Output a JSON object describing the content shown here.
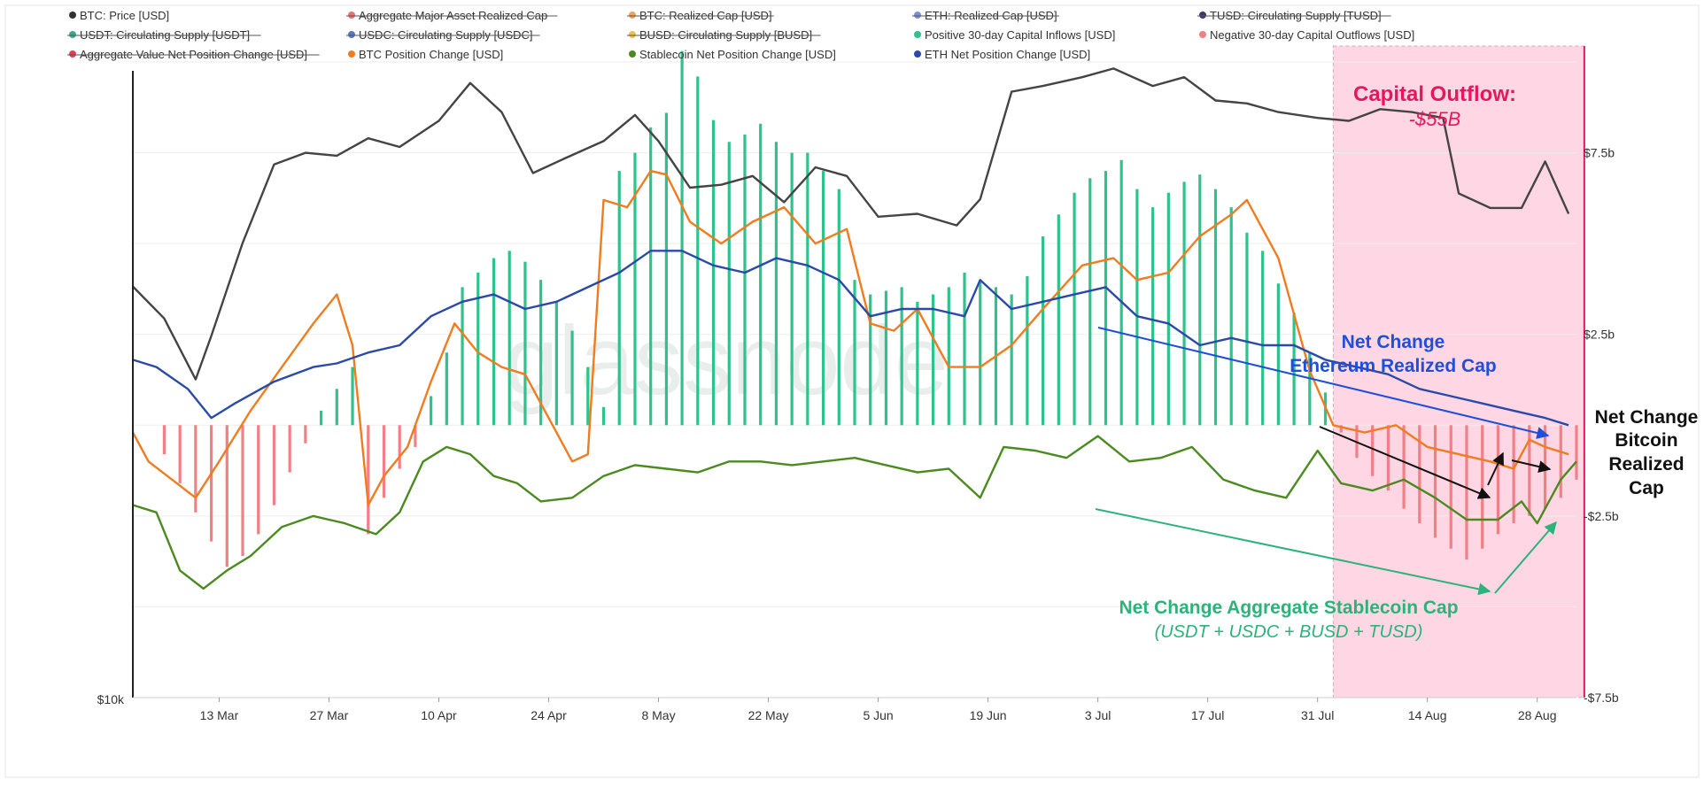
{
  "chart_data": {
    "type": "line",
    "title": "",
    "xlabel": "",
    "ylabel": "",
    "watermark": "glassnode",
    "legend": [
      {
        "label": "BTC: Price [USD]",
        "color": "#333333",
        "struck": false
      },
      {
        "label": "Aggregate Major Asset Realized Cap",
        "color": "#e57373",
        "struck": true
      },
      {
        "label": "BTC: Realized Cap [USD]",
        "color": "#f0a35e",
        "struck": true
      },
      {
        "label": "ETH: Realized Cap [USD]",
        "color": "#7f8fd6",
        "struck": true
      },
      {
        "label": "TUSD: Circulating Supply [TUSD]",
        "color": "#3a3a6e",
        "struck": true
      },
      {
        "label": "USDT: Circulating Supply [USDT]",
        "color": "#3ea98a",
        "struck": true
      },
      {
        "label": "USDC: Circulating Supply [USDC]",
        "color": "#5a78c0",
        "struck": true
      },
      {
        "label": "BUSD: Circulating Supply [BUSD]",
        "color": "#e8c24a",
        "struck": true
      },
      {
        "label": "Positive 30-day Capital Inflows [USD]",
        "color": "#2ec28c",
        "struck": false
      },
      {
        "label": "Negative 30-day Capital Outflows [USD]",
        "color": "#f07f86",
        "struck": false
      },
      {
        "label": "Aggregate Value Net Position Change [USD]",
        "color": "#e04050",
        "struck": true
      },
      {
        "label": "BTC Position Change [USD]",
        "color": "#f07c20",
        "struck": false
      },
      {
        "label": "Stablecoin Net Position Change [USD]",
        "color": "#4a8a1f",
        "struck": false
      },
      {
        "label": "ETH Net Position Change [USD]",
        "color": "#2a4aa8",
        "struck": false
      }
    ],
    "x_ticks": [
      "13 Mar",
      "27 Mar",
      "10 Apr",
      "24 Apr",
      "8 May",
      "22 May",
      "5 Jun",
      "19 Jun",
      "3 Jul",
      "17 Jul",
      "31 Jul",
      "14 Aug",
      "28 Aug"
    ],
    "x_range": [
      "2023-03-02",
      "2023-09-02"
    ],
    "right_axis": {
      "ticks": [
        "$7.5b",
        "$2.5b",
        "-$2.5b",
        "-$7.5b"
      ],
      "values": [
        7.5,
        2.5,
        -2.5,
        -7.5
      ],
      "range": [
        -7.5,
        10
      ]
    },
    "left_axis": {
      "ticks": [
        "$10k"
      ]
    },
    "highlight": {
      "start": "2023-08-02",
      "end": "2023-09-03",
      "color": "#ffd6e4",
      "title": "Capital Outflow:",
      "value": "-$55B"
    },
    "annotations": {
      "eth": {
        "line1": "Net Change",
        "line2": "Ethereum Realized Cap",
        "color": "#1f4fd8"
      },
      "btc": {
        "line1": "Net Change",
        "line2": "Bitcoin",
        "line3": "Realized",
        "line4": "Cap",
        "color": "#111111"
      },
      "stable": {
        "line1": "Net Change Aggregate Stablecoin Cap",
        "line2": "(USDT + USDC + BUSD + TUSD)",
        "color": "#2bb37a"
      }
    },
    "bars_dates": [
      "2023-03-02",
      "2023-03-06",
      "2023-03-08",
      "2023-03-10",
      "2023-03-12",
      "2023-03-14",
      "2023-03-16",
      "2023-03-18",
      "2023-03-20",
      "2023-03-22",
      "2023-03-24",
      "2023-03-26",
      "2023-03-28",
      "2023-03-30",
      "2023-04-01",
      "2023-04-03",
      "2023-04-05",
      "2023-04-07",
      "2023-04-09",
      "2023-04-11",
      "2023-04-13",
      "2023-04-15",
      "2023-04-17",
      "2023-04-19",
      "2023-04-21",
      "2023-04-23",
      "2023-04-25",
      "2023-04-27",
      "2023-04-29",
      "2023-05-01",
      "2023-05-03",
      "2023-05-05",
      "2023-05-07",
      "2023-05-09",
      "2023-05-11",
      "2023-05-13",
      "2023-05-15",
      "2023-05-17",
      "2023-05-19",
      "2023-05-21",
      "2023-05-23",
      "2023-05-25",
      "2023-05-27",
      "2023-05-29",
      "2023-05-31",
      "2023-06-02",
      "2023-06-04",
      "2023-06-06",
      "2023-06-08",
      "2023-06-10",
      "2023-06-12",
      "2023-06-14",
      "2023-06-16",
      "2023-06-18",
      "2023-06-20",
      "2023-06-22",
      "2023-06-24",
      "2023-06-26",
      "2023-06-28",
      "2023-06-30",
      "2023-07-02",
      "2023-07-04",
      "2023-07-06",
      "2023-07-08",
      "2023-07-10",
      "2023-07-12",
      "2023-07-14",
      "2023-07-16",
      "2023-07-18",
      "2023-07-20",
      "2023-07-22",
      "2023-07-24",
      "2023-07-26",
      "2023-07-28",
      "2023-07-30",
      "2023-08-01",
      "2023-08-03",
      "2023-08-05",
      "2023-08-07",
      "2023-08-09",
      "2023-08-11",
      "2023-08-13",
      "2023-08-15",
      "2023-08-17",
      "2023-08-19",
      "2023-08-21",
      "2023-08-23",
      "2023-08-25",
      "2023-08-27",
      "2023-08-29",
      "2023-08-31",
      "2023-09-02"
    ],
    "bars_values": [
      0.0,
      -0.8,
      -1.6,
      -2.4,
      -3.2,
      -3.9,
      -3.6,
      -3.0,
      -2.2,
      -1.3,
      -0.5,
      0.4,
      1.0,
      1.6,
      -3.0,
      -2.0,
      -1.2,
      -0.6,
      0.8,
      2.0,
      3.8,
      4.2,
      4.6,
      4.8,
      4.5,
      4.0,
      3.4,
      2.6,
      1.6,
      0.5,
      7.0,
      7.5,
      8.2,
      8.6,
      10.3,
      9.6,
      8.4,
      7.8,
      8.0,
      8.3,
      7.8,
      7.5,
      7.5,
      7.0,
      6.5,
      4.0,
      3.6,
      3.7,
      3.8,
      3.4,
      3.6,
      3.8,
      4.2,
      4.0,
      3.8,
      3.6,
      4.1,
      5.2,
      5.8,
      6.4,
      6.8,
      7.0,
      7.3,
      6.5,
      6.0,
      6.4,
      6.7,
      6.9,
      6.5,
      6.0,
      5.3,
      4.8,
      3.9,
      3.1,
      2.0,
      0.9,
      -0.2,
      -0.9,
      -1.4,
      -1.8,
      -2.3,
      -2.7,
      -3.1,
      -3.4,
      -3.7,
      -3.4,
      -3.0,
      -2.7,
      -2.5,
      -2.3,
      -2.0,
      -1.5
    ],
    "series": [
      {
        "name": "BTC: Price [USD]",
        "color": "#444444",
        "axis": "left",
        "x": [
          "2023-03-02",
          "2023-03-06",
          "2023-03-10",
          "2023-03-12",
          "2023-03-16",
          "2023-03-20",
          "2023-03-24",
          "2023-03-28",
          "2023-04-01",
          "2023-04-05",
          "2023-04-10",
          "2023-04-14",
          "2023-04-18",
          "2023-04-22",
          "2023-04-26",
          "2023-05-01",
          "2023-05-05",
          "2023-05-08",
          "2023-05-12",
          "2023-05-16",
          "2023-05-20",
          "2023-05-24",
          "2023-05-28",
          "2023-06-01",
          "2023-06-05",
          "2023-06-10",
          "2023-06-15",
          "2023-06-18",
          "2023-06-22",
          "2023-06-26",
          "2023-07-01",
          "2023-07-05",
          "2023-07-10",
          "2023-07-14",
          "2023-07-18",
          "2023-07-22",
          "2023-07-26",
          "2023-07-31",
          "2023-08-04",
          "2023-08-08",
          "2023-08-12",
          "2023-08-16",
          "2023-08-18",
          "2023-08-22",
          "2023-08-26",
          "2023-08-29",
          "2023-09-01"
        ],
        "y": [
          23400,
          22300,
          20200,
          21700,
          24900,
          27600,
          28000,
          27900,
          28500,
          28200,
          29100,
          30400,
          29400,
          27300,
          27800,
          28400,
          29300,
          28400,
          26800,
          26900,
          27200,
          26300,
          27500,
          27200,
          25800,
          25900,
          25500,
          26400,
          30100,
          30300,
          30600,
          30900,
          30300,
          30600,
          29800,
          29700,
          29400,
          29200,
          29100,
          29500,
          29400,
          29200,
          26600,
          26100,
          26100,
          27700,
          25900
        ]
      },
      {
        "name": "BTC Position Change [USD]",
        "color": "#f07c20",
        "axis": "right",
        "x": [
          "2023-03-02",
          "2023-03-04",
          "2023-03-07",
          "2023-03-10",
          "2023-03-13",
          "2023-03-17",
          "2023-03-21",
          "2023-03-25",
          "2023-03-28",
          "2023-03-30",
          "2023-04-01",
          "2023-04-03",
          "2023-04-06",
          "2023-04-09",
          "2023-04-12",
          "2023-04-15",
          "2023-04-18",
          "2023-04-21",
          "2023-04-24",
          "2023-04-27",
          "2023-04-29",
          "2023-05-01",
          "2023-05-04",
          "2023-05-07",
          "2023-05-09",
          "2023-05-12",
          "2023-05-16",
          "2023-05-20",
          "2023-05-24",
          "2023-05-28",
          "2023-06-01",
          "2023-06-04",
          "2023-06-07",
          "2023-06-10",
          "2023-06-14",
          "2023-06-18",
          "2023-06-22",
          "2023-06-26",
          "2023-07-01",
          "2023-07-05",
          "2023-07-08",
          "2023-07-12",
          "2023-07-16",
          "2023-07-20",
          "2023-07-22",
          "2023-07-26",
          "2023-07-30",
          "2023-08-02",
          "2023-08-06",
          "2023-08-10",
          "2023-08-14",
          "2023-08-18",
          "2023-08-22",
          "2023-08-25",
          "2023-08-27",
          "2023-08-29",
          "2023-09-01"
        ],
        "y": [
          -0.2,
          -1.0,
          -1.5,
          -2.0,
          -1.0,
          0.4,
          1.6,
          2.8,
          3.6,
          2.2,
          -2.2,
          -1.4,
          -0.6,
          1.2,
          2.8,
          2.0,
          1.6,
          1.4,
          0.2,
          -1.0,
          -0.8,
          6.2,
          6.0,
          7.0,
          6.9,
          5.6,
          5.0,
          5.6,
          6.0,
          5.0,
          5.4,
          2.8,
          2.6,
          3.2,
          1.6,
          1.6,
          2.2,
          3.2,
          4.4,
          4.6,
          4.0,
          4.2,
          5.2,
          5.8,
          6.2,
          4.6,
          1.5,
          0.0,
          -0.2,
          0.0,
          -0.6,
          -0.8,
          -1.0,
          -1.2,
          -0.4,
          -0.6,
          -0.8
        ]
      },
      {
        "name": "Stablecoin Net Position Change [USD]",
        "color": "#4a8a1f",
        "axis": "right",
        "x": [
          "2023-03-02",
          "2023-03-05",
          "2023-03-08",
          "2023-03-11",
          "2023-03-14",
          "2023-03-17",
          "2023-03-21",
          "2023-03-25",
          "2023-03-29",
          "2023-04-02",
          "2023-04-05",
          "2023-04-08",
          "2023-04-11",
          "2023-04-14",
          "2023-04-17",
          "2023-04-20",
          "2023-04-23",
          "2023-04-27",
          "2023-05-01",
          "2023-05-05",
          "2023-05-09",
          "2023-05-13",
          "2023-05-17",
          "2023-05-21",
          "2023-05-25",
          "2023-05-29",
          "2023-06-02",
          "2023-06-06",
          "2023-06-10",
          "2023-06-14",
          "2023-06-18",
          "2023-06-21",
          "2023-06-25",
          "2023-06-29",
          "2023-07-03",
          "2023-07-07",
          "2023-07-11",
          "2023-07-15",
          "2023-07-19",
          "2023-07-23",
          "2023-07-27",
          "2023-07-31",
          "2023-08-03",
          "2023-08-07",
          "2023-08-11",
          "2023-08-15",
          "2023-08-19",
          "2023-08-23",
          "2023-08-26",
          "2023-08-28",
          "2023-08-31",
          "2023-09-02"
        ],
        "y": [
          -2.2,
          -2.4,
          -4.0,
          -4.5,
          -4.0,
          -3.6,
          -2.8,
          -2.5,
          -2.7,
          -3.0,
          -2.4,
          -1.0,
          -0.6,
          -0.8,
          -1.4,
          -1.6,
          -2.1,
          -2.0,
          -1.4,
          -1.1,
          -1.2,
          -1.3,
          -1.0,
          -1.0,
          -1.1,
          -1.0,
          -0.9,
          -1.1,
          -1.3,
          -1.2,
          -2.0,
          -0.6,
          -0.7,
          -0.9,
          -0.3,
          -1.0,
          -0.9,
          -0.6,
          -1.5,
          -1.8,
          -2.0,
          -0.7,
          -1.6,
          -1.8,
          -1.5,
          -2.0,
          -2.6,
          -2.6,
          -2.1,
          -2.7,
          -1.5,
          -1.0
        ]
      },
      {
        "name": "ETH Net Position Change [USD]",
        "color": "#2a4aa8",
        "axis": "right",
        "x": [
          "2023-03-02",
          "2023-03-05",
          "2023-03-09",
          "2023-03-12",
          "2023-03-15",
          "2023-03-20",
          "2023-03-25",
          "2023-03-28",
          "2023-04-01",
          "2023-04-05",
          "2023-04-09",
          "2023-04-13",
          "2023-04-17",
          "2023-04-21",
          "2023-04-25",
          "2023-04-29",
          "2023-05-03",
          "2023-05-07",
          "2023-05-11",
          "2023-05-15",
          "2023-05-19",
          "2023-05-23",
          "2023-05-27",
          "2023-05-31",
          "2023-06-04",
          "2023-06-08",
          "2023-06-12",
          "2023-06-16",
          "2023-06-18",
          "2023-06-22",
          "2023-06-26",
          "2023-06-30",
          "2023-07-04",
          "2023-07-08",
          "2023-07-12",
          "2023-07-16",
          "2023-07-20",
          "2023-07-24",
          "2023-07-28",
          "2023-08-01",
          "2023-08-05",
          "2023-08-09",
          "2023-08-13",
          "2023-08-17",
          "2023-08-21",
          "2023-08-25",
          "2023-08-29",
          "2023-09-01"
        ],
        "y": [
          1.8,
          1.6,
          1.0,
          0.2,
          0.6,
          1.2,
          1.6,
          1.7,
          2.0,
          2.2,
          3.0,
          3.4,
          3.6,
          3.2,
          3.4,
          3.8,
          4.2,
          4.8,
          4.8,
          4.4,
          4.2,
          4.6,
          4.4,
          4.0,
          3.0,
          3.2,
          3.2,
          3.0,
          4.0,
          3.2,
          3.4,
          3.6,
          3.8,
          3.0,
          2.8,
          2.2,
          2.4,
          2.2,
          2.2,
          1.8,
          1.6,
          1.4,
          1.0,
          0.8,
          0.6,
          0.4,
          0.2,
          0.0
        ]
      }
    ]
  }
}
